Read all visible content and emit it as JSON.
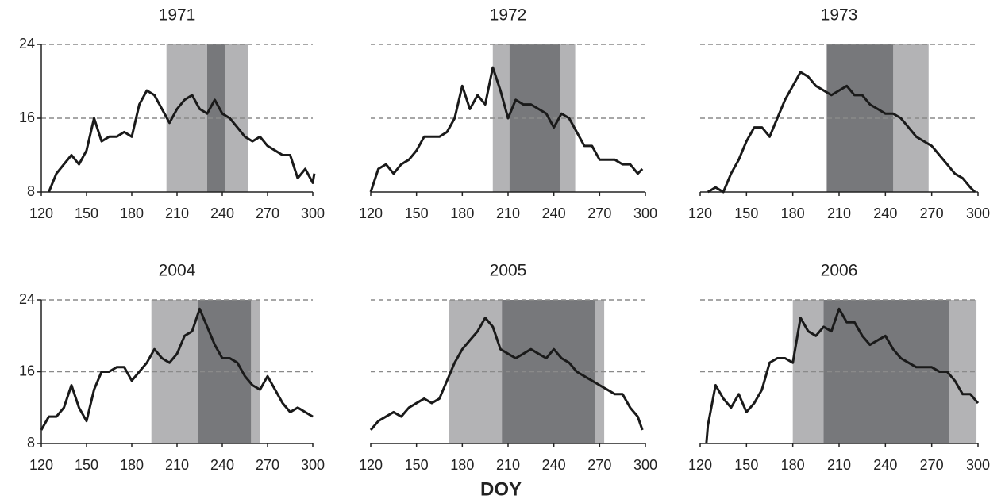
{
  "chart_data": [
    {
      "type": "line",
      "title": "1971",
      "xlim": [
        120,
        300
      ],
      "ylim": [
        8,
        24
      ],
      "xticks": [
        120,
        150,
        180,
        210,
        240,
        270,
        300
      ],
      "yticks": [
        8,
        16,
        24
      ],
      "show_ytick_labels": true,
      "grid": true,
      "color": "#1a1a1a",
      "spans": [
        {
          "start": 203,
          "end": 257,
          "color": "#b3b3b5"
        },
        {
          "start": 230,
          "end": 242,
          "color": "#77787b"
        }
      ],
      "x": [
        125,
        130,
        135,
        140,
        145,
        150,
        155,
        160,
        165,
        170,
        175,
        180,
        185,
        190,
        195,
        200,
        205,
        210,
        215,
        220,
        225,
        230,
        235,
        240,
        245,
        250,
        255,
        260,
        265,
        270,
        275,
        280,
        285,
        290,
        295,
        300,
        301
      ],
      "values": [
        8,
        10,
        11,
        12,
        11,
        12.5,
        16,
        13.5,
        14,
        14,
        14.5,
        14,
        17.5,
        19,
        18.5,
        17,
        15.5,
        17,
        18,
        18.5,
        17,
        16.5,
        18,
        16.5,
        16,
        15,
        14,
        13.5,
        14,
        13,
        12.5,
        12,
        12,
        9.5,
        10.5,
        9,
        10
      ]
    },
    {
      "type": "line",
      "title": "1972",
      "xlim": [
        120,
        300
      ],
      "ylim": [
        8,
        24
      ],
      "xticks": [
        120,
        150,
        180,
        210,
        240,
        270,
        300
      ],
      "yticks": [
        8,
        16,
        24
      ],
      "show_ytick_labels": false,
      "grid": true,
      "color": "#1a1a1a",
      "spans": [
        {
          "start": 200,
          "end": 254,
          "color": "#b3b3b5"
        },
        {
          "start": 211,
          "end": 244,
          "color": "#77787b"
        }
      ],
      "x": [
        120,
        125,
        130,
        135,
        140,
        145,
        150,
        155,
        160,
        165,
        170,
        175,
        180,
        185,
        190,
        195,
        200,
        205,
        210,
        215,
        220,
        225,
        230,
        235,
        240,
        245,
        250,
        255,
        260,
        265,
        270,
        275,
        280,
        285,
        290,
        295,
        298
      ],
      "values": [
        8,
        10.5,
        11,
        10,
        11,
        11.5,
        12.5,
        14,
        14,
        14,
        14.5,
        16,
        19.5,
        17,
        18.5,
        17.5,
        21.5,
        19,
        16,
        18,
        17.5,
        17.5,
        17,
        16.5,
        15,
        16.5,
        16,
        14.5,
        13,
        13,
        11.5,
        11.5,
        11.5,
        11,
        11,
        10,
        10.5
      ]
    },
    {
      "type": "line",
      "title": "1973",
      "xlim": [
        120,
        300
      ],
      "ylim": [
        8,
        24
      ],
      "xticks": [
        120,
        150,
        180,
        210,
        240,
        270,
        300
      ],
      "yticks": [
        8,
        16,
        24
      ],
      "show_ytick_labels": false,
      "grid": true,
      "color": "#1a1a1a",
      "spans": [
        {
          "start": 202,
          "end": 268,
          "color": "#b3b3b5"
        },
        {
          "start": 202,
          "end": 245,
          "color": "#77787b"
        }
      ],
      "x": [
        125,
        130,
        135,
        140,
        145,
        150,
        155,
        160,
        165,
        170,
        175,
        180,
        185,
        190,
        195,
        200,
        205,
        210,
        215,
        220,
        225,
        230,
        235,
        240,
        245,
        250,
        255,
        260,
        265,
        270,
        275,
        280,
        285,
        290,
        295,
        298
      ],
      "values": [
        8,
        8.5,
        8,
        10,
        11.5,
        13.5,
        15,
        15,
        14,
        16,
        18,
        19.5,
        21,
        20.5,
        19.5,
        19,
        18.5,
        19,
        19.5,
        18.5,
        18.5,
        17.5,
        17,
        16.5,
        16.5,
        16,
        15,
        14,
        13.5,
        13,
        12,
        11,
        10,
        9.5,
        8.5,
        8
      ]
    },
    {
      "type": "line",
      "title": "2004",
      "xlim": [
        120,
        300
      ],
      "ylim": [
        8,
        24
      ],
      "xticks": [
        120,
        150,
        180,
        210,
        240,
        270,
        300
      ],
      "yticks": [
        8,
        16,
        24
      ],
      "show_ytick_labels": true,
      "grid": true,
      "color": "#1a1a1a",
      "spans": [
        {
          "start": 193,
          "end": 265,
          "color": "#b3b3b5"
        },
        {
          "start": 224,
          "end": 259,
          "color": "#77787b"
        }
      ],
      "x": [
        120,
        125,
        130,
        135,
        140,
        145,
        150,
        155,
        160,
        165,
        170,
        175,
        180,
        185,
        190,
        195,
        200,
        205,
        210,
        215,
        220,
        225,
        230,
        235,
        240,
        245,
        250,
        255,
        260,
        265,
        270,
        275,
        280,
        285,
        290,
        295,
        300
      ],
      "values": [
        9.5,
        11,
        11,
        12,
        14.5,
        12,
        10.5,
        14,
        16,
        16,
        16.5,
        16.5,
        15,
        16,
        17,
        18.5,
        17.5,
        17,
        18,
        20,
        20.5,
        23,
        21,
        19,
        17.5,
        17.5,
        17,
        15.5,
        14.5,
        14,
        15.5,
        14,
        12.5,
        11.5,
        12,
        11.5,
        11
      ]
    },
    {
      "type": "line",
      "title": "2005",
      "xlim": [
        120,
        300
      ],
      "ylim": [
        8,
        24
      ],
      "xticks": [
        120,
        150,
        180,
        210,
        240,
        270,
        300
      ],
      "yticks": [
        8,
        16,
        24
      ],
      "show_ytick_labels": false,
      "grid": true,
      "color": "#1a1a1a",
      "spans": [
        {
          "start": 171,
          "end": 273,
          "color": "#b3b3b5"
        },
        {
          "start": 206,
          "end": 267,
          "color": "#77787b"
        }
      ],
      "x": [
        120,
        125,
        130,
        135,
        140,
        145,
        150,
        155,
        160,
        165,
        170,
        175,
        180,
        185,
        190,
        195,
        200,
        205,
        210,
        215,
        220,
        225,
        230,
        235,
        240,
        245,
        250,
        255,
        260,
        265,
        270,
        275,
        280,
        285,
        290,
        295,
        298
      ],
      "values": [
        9.5,
        10.5,
        11,
        11.5,
        11,
        12,
        12.5,
        13,
        12.5,
        13,
        15,
        17,
        18.5,
        19.5,
        20.5,
        22,
        21,
        18.5,
        18,
        17.5,
        18,
        18.5,
        18,
        17.5,
        18.5,
        17.5,
        17,
        16,
        15.5,
        15,
        14.5,
        14,
        13.5,
        13.5,
        12,
        11,
        9.5
      ]
    },
    {
      "type": "line",
      "title": "2006",
      "xlim": [
        120,
        300
      ],
      "ylim": [
        8,
        24
      ],
      "xticks": [
        120,
        150,
        180,
        210,
        240,
        270,
        300
      ],
      "yticks": [
        8,
        16,
        24
      ],
      "show_ytick_labels": false,
      "grid": true,
      "color": "#1a1a1a",
      "spans": [
        {
          "start": 180,
          "end": 299,
          "color": "#b3b3b5"
        },
        {
          "start": 200,
          "end": 281,
          "color": "#77787b"
        }
      ],
      "x": [
        124,
        125,
        130,
        135,
        140,
        145,
        150,
        155,
        160,
        165,
        170,
        175,
        180,
        185,
        190,
        195,
        200,
        205,
        210,
        215,
        220,
        225,
        230,
        235,
        240,
        245,
        250,
        255,
        260,
        265,
        270,
        275,
        280,
        285,
        290,
        295,
        300
      ],
      "values": [
        8,
        10,
        14.5,
        13,
        12,
        13.5,
        11.5,
        12.5,
        14,
        17,
        17.5,
        17.5,
        17,
        22,
        20.5,
        20,
        21,
        20.5,
        23,
        21.5,
        21.5,
        20,
        19,
        19.5,
        20,
        18.5,
        17.5,
        17,
        16.5,
        16.5,
        16.5,
        16,
        16,
        15,
        13.5,
        13.5,
        12.5
      ]
    }
  ],
  "xlabel": "DOY"
}
